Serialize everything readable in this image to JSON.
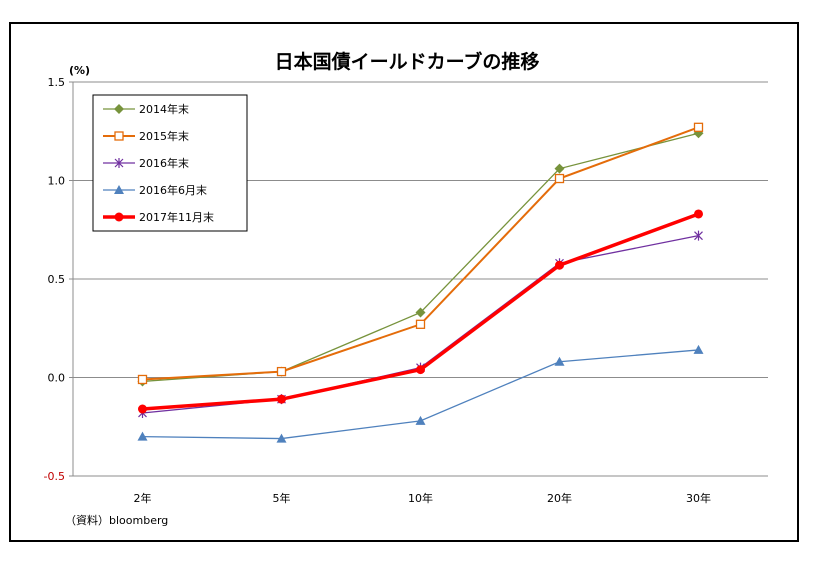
{
  "chart_data": {
    "type": "line",
    "title": "日本国債イールドカーブの推移",
    "yunit": "(%)",
    "source": "（資料）bloomberg",
    "categories": [
      "2年",
      "5年",
      "10年",
      "20年",
      "30年"
    ],
    "ylim": [
      -0.5,
      1.5
    ],
    "yticks": [
      "1.5",
      "1.0",
      "0.5",
      "0.0",
      "-0.5"
    ],
    "ytick_values": [
      1.5,
      1.0,
      0.5,
      0.0,
      -0.5
    ],
    "grid": true,
    "legend_position": "top-left",
    "series": [
      {
        "name": "2014年末",
        "values": [
          -0.02,
          0.03,
          0.33,
          1.06,
          1.24
        ],
        "color": "#77933c",
        "marker": "diamond"
      },
      {
        "name": "2015年末",
        "values": [
          -0.01,
          0.03,
          0.27,
          1.01,
          1.27
        ],
        "color": "#e46c0a",
        "marker": "square"
      },
      {
        "name": "2016年末",
        "values": [
          -0.18,
          -0.11,
          0.05,
          0.58,
          0.72
        ],
        "color": "#7030a0",
        "marker": "star"
      },
      {
        "name": "2016年6月末",
        "values": [
          -0.3,
          -0.31,
          -0.22,
          0.08,
          0.14
        ],
        "color": "#4f81bd",
        "marker": "triangle"
      },
      {
        "name": "2017年11月末",
        "values": [
          -0.16,
          -0.11,
          0.04,
          0.57,
          0.83
        ],
        "color": "#ff0000",
        "marker": "circle"
      }
    ]
  }
}
